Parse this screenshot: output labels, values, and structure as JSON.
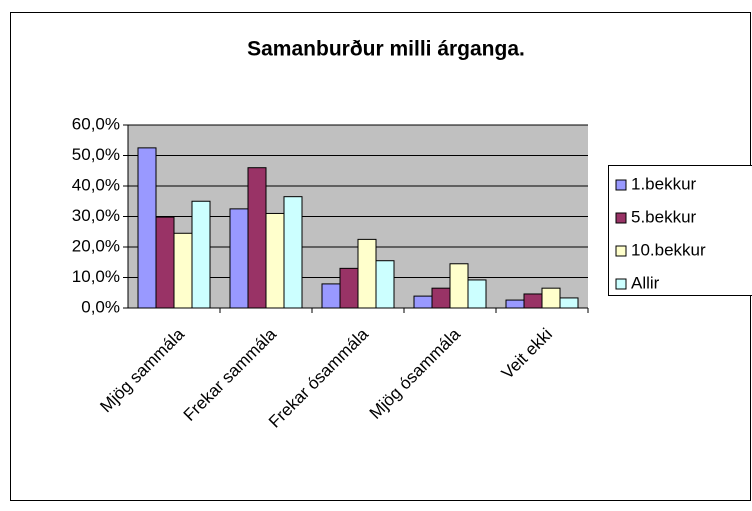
{
  "chart_data": {
    "type": "bar",
    "title": "Samanburður milli árganga.",
    "categories": [
      "Mjög sammála",
      "Frekar sammála",
      "Frekar ósammála",
      "Mjög ósammála",
      "Veit ekki"
    ],
    "series": [
      {
        "name": "1.bekkur",
        "color": "#9999FF",
        "values": [
          52.5,
          32.5,
          7.9,
          3.9,
          2.6
        ]
      },
      {
        "name": "5.bekkur",
        "color": "#993366",
        "values": [
          29.8,
          46.0,
          13.0,
          6.5,
          4.6
        ]
      },
      {
        "name": "10.bekkur",
        "color": "#FFFFCC",
        "values": [
          24.5,
          31.0,
          22.5,
          14.5,
          6.5
        ]
      },
      {
        "name": "Allir",
        "color": "#CCFFFF",
        "values": [
          35.0,
          36.5,
          15.5,
          9.2,
          3.3
        ]
      }
    ],
    "ylim": [
      0,
      60
    ],
    "yticks": [
      {
        "value": 0,
        "label": "0,0%"
      },
      {
        "value": 10,
        "label": "10,0%"
      },
      {
        "value": 20,
        "label": "20,0%"
      },
      {
        "value": 30,
        "label": "30,0%"
      },
      {
        "value": 40,
        "label": "40,0%"
      },
      {
        "value": 50,
        "label": "50,0%"
      },
      {
        "value": 60,
        "label": "60,0%"
      }
    ],
    "grid": true,
    "plot_background": "#C0C0C0",
    "legend": "right"
  }
}
